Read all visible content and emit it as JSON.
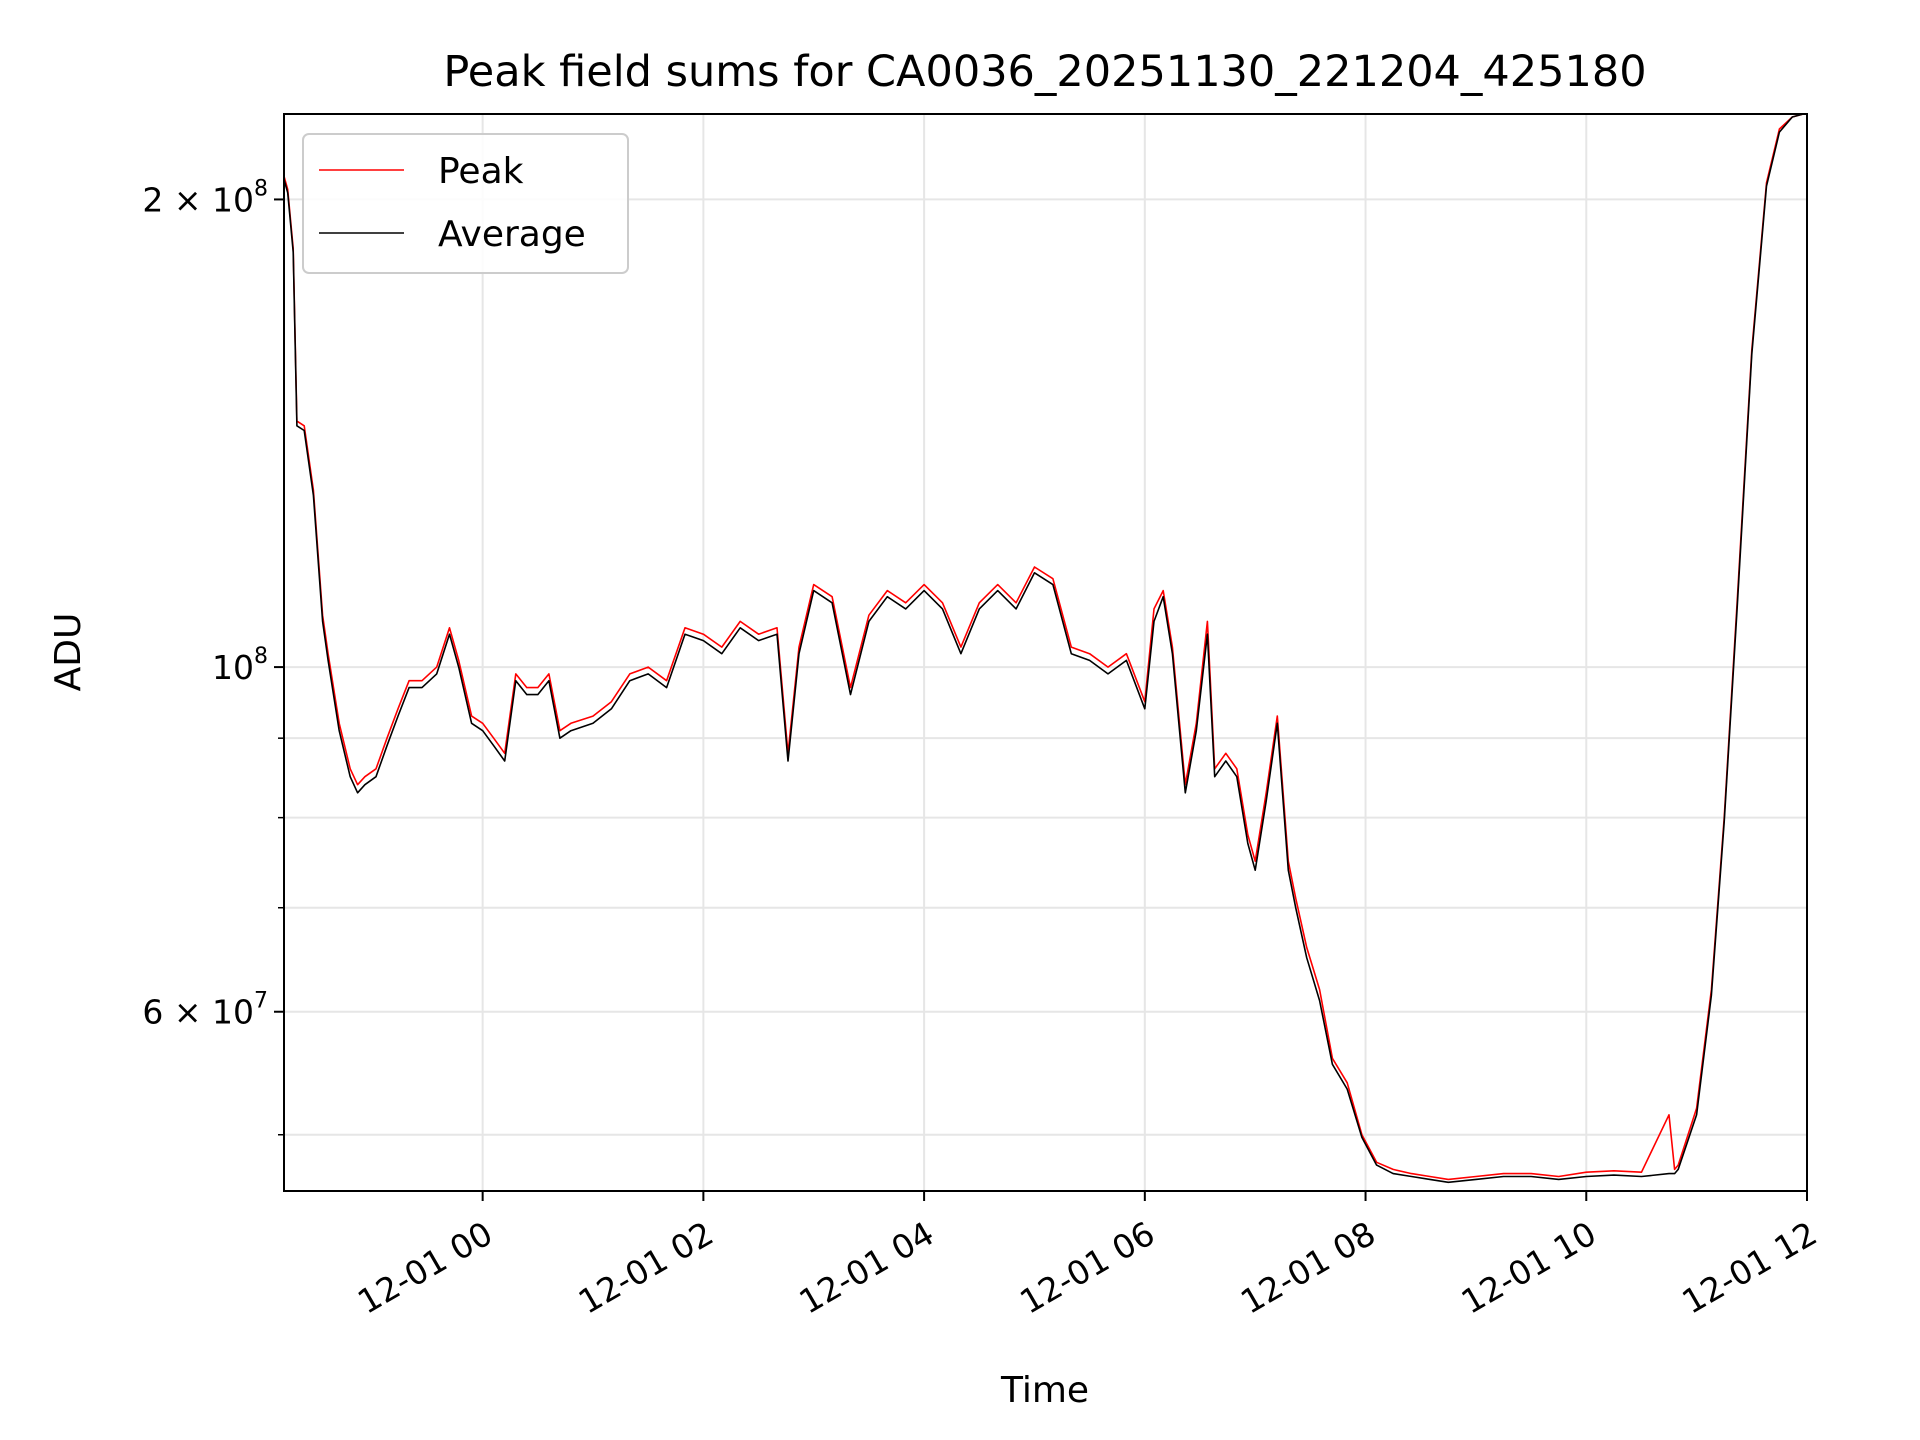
{
  "chart_data": {
    "type": "line",
    "title": "Peak field sums for CA0036_20251130_221204_425180",
    "xlabel": "Time",
    "ylabel": "ADU",
    "x_axis_type": "datetime",
    "y_scale": "log",
    "xlim": [
      "2025-11-30 22:12",
      "2025-12-01 12:00"
    ],
    "ylim": [
      46000000,
      227000000
    ],
    "grid": true,
    "legend_position": "upper left",
    "x_ticks": [
      {
        "value": "2025-12-01 00:00",
        "label": "12-01 00"
      },
      {
        "value": "2025-12-01 02:00",
        "label": "12-01 02"
      },
      {
        "value": "2025-12-01 04:00",
        "label": "12-01 04"
      },
      {
        "value": "2025-12-01 06:00",
        "label": "12-01 06"
      },
      {
        "value": "2025-12-01 08:00",
        "label": "12-01 08"
      },
      {
        "value": "2025-12-01 10:00",
        "label": "12-01 10"
      },
      {
        "value": "2025-12-01 12:00",
        "label": "12-01 12"
      }
    ],
    "y_ticks": [
      {
        "value": 60000000,
        "base": "6 × 10",
        "exp": "7"
      },
      {
        "value": 100000000,
        "base": "10",
        "exp": "8"
      },
      {
        "value": 200000000,
        "base": "2 × 10",
        "exp": "8"
      }
    ],
    "y_minor_ticks": [
      50000000,
      70000000,
      80000000,
      90000000
    ],
    "series": [
      {
        "name": "Peak",
        "color": "#ff0000",
        "x": [
          "2025-11-30 22:12",
          "2025-11-30 22:14",
          "2025-11-30 22:17",
          "2025-11-30 22:19",
          "2025-11-30 22:23",
          "2025-11-30 22:28",
          "2025-11-30 22:33",
          "2025-11-30 22:36",
          "2025-11-30 22:42",
          "2025-11-30 22:48",
          "2025-11-30 22:52",
          "2025-11-30 22:56",
          "2025-11-30 23:02",
          "2025-11-30 23:08",
          "2025-11-30 23:14",
          "2025-11-30 23:20",
          "2025-11-30 23:27",
          "2025-11-30 23:35",
          "2025-11-30 23:42",
          "2025-11-30 23:47",
          "2025-11-30 23:54",
          "2025-12-01 00:00",
          "2025-12-01 00:06",
          "2025-12-01 00:12",
          "2025-12-01 00:18",
          "2025-12-01 00:24",
          "2025-12-01 00:30",
          "2025-12-01 00:36",
          "2025-12-01 00:42",
          "2025-12-01 00:48",
          "2025-12-01 01:00",
          "2025-12-01 01:10",
          "2025-12-01 01:20",
          "2025-12-01 01:30",
          "2025-12-01 01:40",
          "2025-12-01 01:50",
          "2025-12-01 02:00",
          "2025-12-01 02:10",
          "2025-12-01 02:20",
          "2025-12-01 02:30",
          "2025-12-01 02:40",
          "2025-12-01 02:46",
          "2025-12-01 02:52",
          "2025-12-01 03:00",
          "2025-12-01 03:10",
          "2025-12-01 03:20",
          "2025-12-01 03:30",
          "2025-12-01 03:40",
          "2025-12-01 03:50",
          "2025-12-01 04:00",
          "2025-12-01 04:10",
          "2025-12-01 04:20",
          "2025-12-01 04:30",
          "2025-12-01 04:40",
          "2025-12-01 04:50",
          "2025-12-01 05:00",
          "2025-12-01 05:10",
          "2025-12-01 05:20",
          "2025-12-01 05:30",
          "2025-12-01 05:40",
          "2025-12-01 05:50",
          "2025-12-01 06:00",
          "2025-12-01 06:05",
          "2025-12-01 06:10",
          "2025-12-01 06:15",
          "2025-12-01 06:22",
          "2025-12-01 06:28",
          "2025-12-01 06:34",
          "2025-12-01 06:38",
          "2025-12-01 06:44",
          "2025-12-01 06:50",
          "2025-12-01 06:56",
          "2025-12-01 07:00",
          "2025-12-01 07:06",
          "2025-12-01 07:12",
          "2025-12-01 07:18",
          "2025-12-01 07:22",
          "2025-12-01 07:28",
          "2025-12-01 07:35",
          "2025-12-01 07:42",
          "2025-12-01 07:50",
          "2025-12-01 07:58",
          "2025-12-01 08:06",
          "2025-12-01 08:15",
          "2025-12-01 08:25",
          "2025-12-01 08:35",
          "2025-12-01 08:45",
          "2025-12-01 09:00",
          "2025-12-01 09:15",
          "2025-12-01 09:30",
          "2025-12-01 09:45",
          "2025-12-01 10:00",
          "2025-12-01 10:15",
          "2025-12-01 10:30",
          "2025-12-01 10:45",
          "2025-12-01 10:48",
          "2025-12-01 10:50",
          "2025-12-01 11:00",
          "2025-12-01 11:08",
          "2025-12-01 11:15",
          "2025-12-01 11:22",
          "2025-12-01 11:30",
          "2025-12-01 11:38",
          "2025-12-01 11:45",
          "2025-12-01 11:52",
          "2025-12-01 11:58"
        ],
        "values": [
          207000000,
          203000000,
          186000000,
          144000000,
          143000000,
          130000000,
          108000000,
          102000000,
          92000000,
          86000000,
          84000000,
          85000000,
          86000000,
          90000000,
          94000000,
          98000000,
          98000000,
          100000000,
          106000000,
          101000000,
          93000000,
          92000000,
          90000000,
          88000000,
          99000000,
          97000000,
          97000000,
          99000000,
          91000000,
          92000000,
          93000000,
          95000000,
          99000000,
          100000000,
          98000000,
          106000000,
          105000000,
          103000000,
          107000000,
          105000000,
          106000000,
          88000000,
          103000000,
          113000000,
          111000000,
          97000000,
          108000000,
          112000000,
          110000000,
          113000000,
          110000000,
          103000000,
          110000000,
          113000000,
          110000000,
          116000000,
          114000000,
          103000000,
          102000000,
          100000000,
          102000000,
          95000000,
          109000000,
          112000000,
          103000000,
          84000000,
          92000000,
          107000000,
          86000000,
          88000000,
          86000000,
          78000000,
          75000000,
          83000000,
          93000000,
          75000000,
          71000000,
          66000000,
          62000000,
          56000000,
          54000000,
          50000000,
          48000000,
          47500000,
          47200000,
          47000000,
          46800000,
          47000000,
          47200000,
          47200000,
          47000000,
          47300000,
          47400000,
          47300000,
          51500000,
          47500000,
          47800000,
          52000000,
          62000000,
          80000000,
          110000000,
          160000000,
          205000000,
          222000000,
          226000000,
          227000000
        ]
      },
      {
        "name": "Average",
        "color": "#000000",
        "x": [
          "2025-11-30 22:12",
          "2025-11-30 22:14",
          "2025-11-30 22:17",
          "2025-11-30 22:19",
          "2025-11-30 22:23",
          "2025-11-30 22:28",
          "2025-11-30 22:33",
          "2025-11-30 22:36",
          "2025-11-30 22:42",
          "2025-11-30 22:48",
          "2025-11-30 22:52",
          "2025-11-30 22:56",
          "2025-11-30 23:02",
          "2025-11-30 23:08",
          "2025-11-30 23:14",
          "2025-11-30 23:20",
          "2025-11-30 23:27",
          "2025-11-30 23:35",
          "2025-11-30 23:42",
          "2025-11-30 23:47",
          "2025-11-30 23:54",
          "2025-12-01 00:00",
          "2025-12-01 00:06",
          "2025-12-01 00:12",
          "2025-12-01 00:18",
          "2025-12-01 00:24",
          "2025-12-01 00:30",
          "2025-12-01 00:36",
          "2025-12-01 00:42",
          "2025-12-01 00:48",
          "2025-12-01 01:00",
          "2025-12-01 01:10",
          "2025-12-01 01:20",
          "2025-12-01 01:30",
          "2025-12-01 01:40",
          "2025-12-01 01:50",
          "2025-12-01 02:00",
          "2025-12-01 02:10",
          "2025-12-01 02:20",
          "2025-12-01 02:30",
          "2025-12-01 02:40",
          "2025-12-01 02:46",
          "2025-12-01 02:52",
          "2025-12-01 03:00",
          "2025-12-01 03:10",
          "2025-12-01 03:20",
          "2025-12-01 03:30",
          "2025-12-01 03:40",
          "2025-12-01 03:50",
          "2025-12-01 04:00",
          "2025-12-01 04:10",
          "2025-12-01 04:20",
          "2025-12-01 04:30",
          "2025-12-01 04:40",
          "2025-12-01 04:50",
          "2025-12-01 05:00",
          "2025-12-01 05:10",
          "2025-12-01 05:20",
          "2025-12-01 05:30",
          "2025-12-01 05:40",
          "2025-12-01 05:50",
          "2025-12-01 06:00",
          "2025-12-01 06:05",
          "2025-12-01 06:10",
          "2025-12-01 06:15",
          "2025-12-01 06:22",
          "2025-12-01 06:28",
          "2025-12-01 06:34",
          "2025-12-01 06:38",
          "2025-12-01 06:44",
          "2025-12-01 06:50",
          "2025-12-01 06:56",
          "2025-12-01 07:00",
          "2025-12-01 07:06",
          "2025-12-01 07:12",
          "2025-12-01 07:18",
          "2025-12-01 07:22",
          "2025-12-01 07:28",
          "2025-12-01 07:35",
          "2025-12-01 07:42",
          "2025-12-01 07:50",
          "2025-12-01 07:58",
          "2025-12-01 08:06",
          "2025-12-01 08:15",
          "2025-12-01 08:25",
          "2025-12-01 08:35",
          "2025-12-01 08:45",
          "2025-12-01 09:00",
          "2025-12-01 09:15",
          "2025-12-01 09:30",
          "2025-12-01 09:45",
          "2025-12-01 10:00",
          "2025-12-01 10:15",
          "2025-12-01 10:30",
          "2025-12-01 10:45",
          "2025-12-01 10:48",
          "2025-12-01 10:50",
          "2025-12-01 11:00",
          "2025-12-01 11:08",
          "2025-12-01 11:15",
          "2025-12-01 11:22",
          "2025-12-01 11:30",
          "2025-12-01 11:38",
          "2025-12-01 11:45",
          "2025-12-01 11:52",
          "2025-12-01 11:58"
        ],
        "values": [
          206000000,
          202000000,
          185000000,
          143000000,
          142000000,
          129000000,
          107000000,
          101000000,
          91000000,
          85000000,
          83000000,
          84000000,
          85000000,
          89000000,
          93000000,
          97000000,
          97000000,
          99000000,
          105000000,
          100000000,
          92000000,
          91000000,
          89000000,
          87000000,
          98000000,
          96000000,
          96000000,
          98000000,
          90000000,
          91000000,
          92000000,
          94000000,
          98000000,
          99000000,
          97000000,
          105000000,
          104000000,
          102000000,
          106000000,
          104000000,
          105000000,
          87000000,
          102000000,
          112000000,
          110000000,
          96000000,
          107000000,
          111000000,
          109000000,
          112000000,
          109000000,
          102000000,
          109000000,
          112000000,
          109000000,
          115000000,
          113000000,
          102000000,
          101000000,
          99000000,
          101000000,
          94000000,
          107000000,
          111000000,
          102000000,
          83000000,
          91000000,
          105000000,
          85000000,
          87000000,
          85000000,
          77000000,
          74000000,
          82000000,
          92000000,
          74000000,
          70000000,
          65000000,
          61000000,
          55500000,
          53500000,
          49800000,
          47800000,
          47200000,
          47000000,
          46800000,
          46600000,
          46800000,
          47000000,
          47000000,
          46800000,
          47000000,
          47100000,
          47000000,
          47200000,
          47200000,
          47500000,
          51500000,
          61500000,
          79500000,
          109000000,
          159000000,
          204000000,
          221000000,
          226000000,
          227000000
        ]
      }
    ]
  }
}
